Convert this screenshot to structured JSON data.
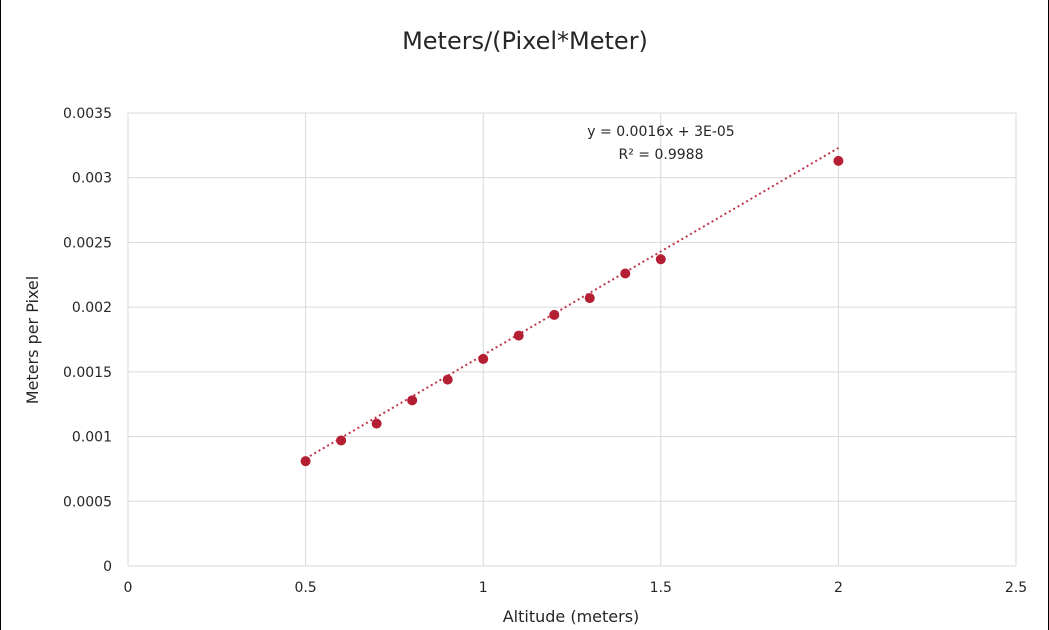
{
  "chart_data": {
    "type": "scatter",
    "title": "Meters/(Pixel*Meter)",
    "xlabel": "Altitude (meters)",
    "ylabel": "Meters per Pixel",
    "xlim": [
      0,
      2.5
    ],
    "ylim": [
      0,
      0.0035
    ],
    "x_ticks": [
      "0",
      "0.5",
      "1",
      "1.5",
      "2",
      "2.5"
    ],
    "y_ticks": [
      "0",
      "0.0005",
      "0.001",
      "0.0015",
      "0.002",
      "0.0025",
      "0.003",
      "0.0035"
    ],
    "grid": true,
    "series": [
      {
        "x": [
          0.5,
          0.6,
          0.7,
          0.8,
          0.9,
          1.0,
          1.1,
          1.2,
          1.3,
          1.4,
          1.5,
          2.0
        ],
        "y": [
          0.00081,
          0.00097,
          0.0011,
          0.00128,
          0.00144,
          0.0016,
          0.00178,
          0.00194,
          0.00207,
          0.00226,
          0.00237,
          0.00313
        ],
        "color": "#b41f33"
      }
    ],
    "trendline": {
      "type": "linear",
      "slope": 0.0016,
      "intercept": 3e-05,
      "equation": "y = 0.0016x + 3E-05",
      "r_squared": "R² = 0.9988",
      "color": "#c0364a",
      "style": "dotted"
    }
  }
}
